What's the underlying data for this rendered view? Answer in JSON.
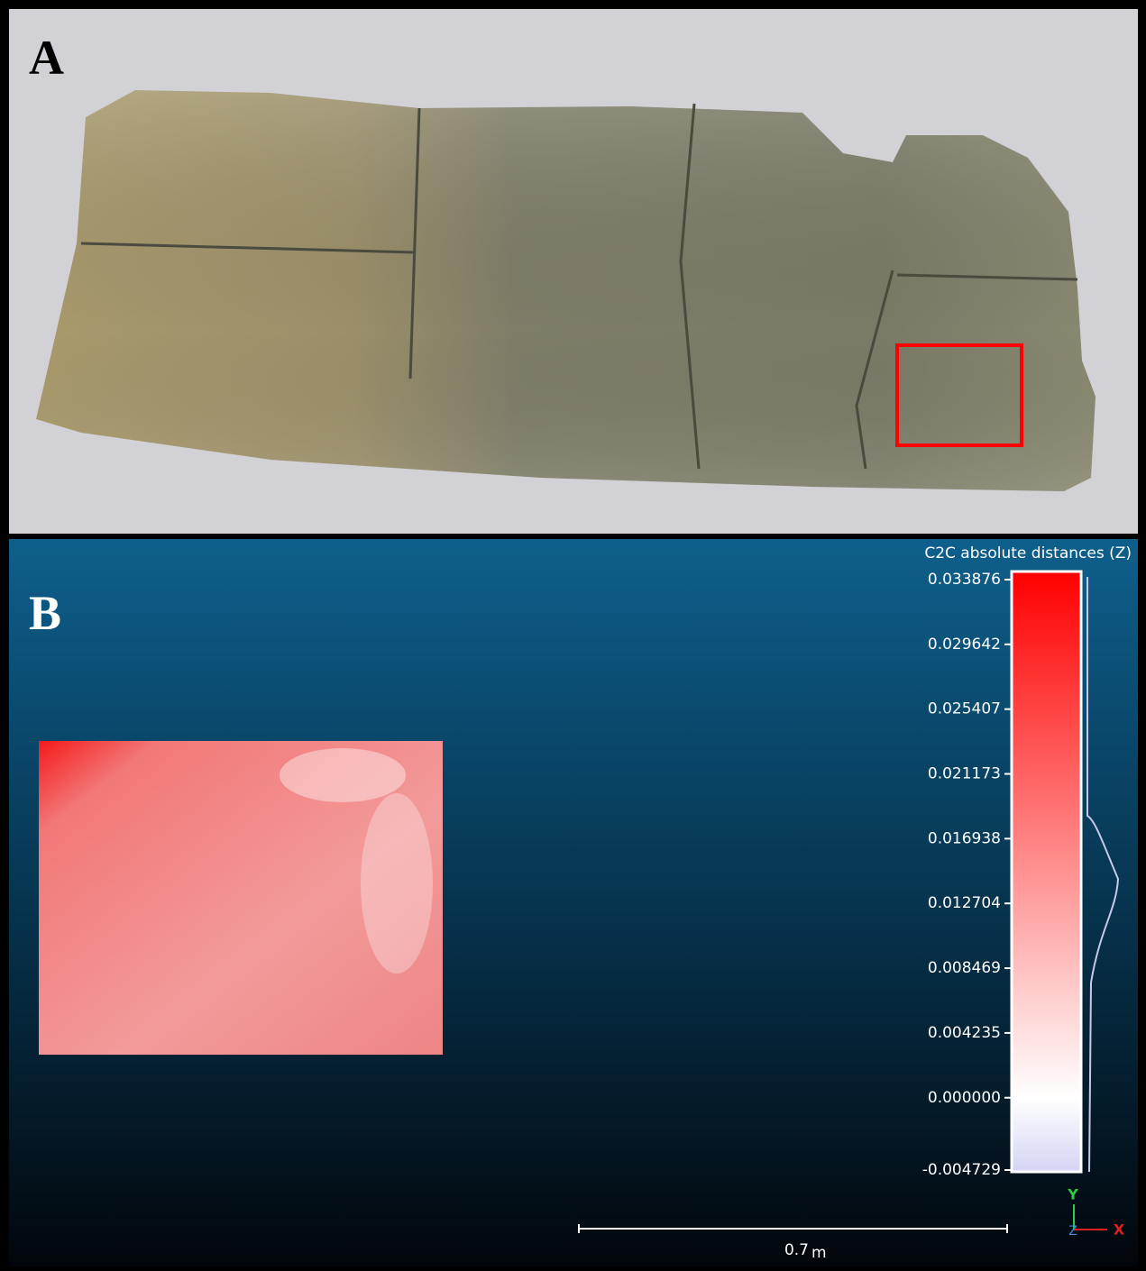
{
  "panel_a": {
    "label": "A"
  },
  "panel_b": {
    "label": "B",
    "colorbar": {
      "title": "C2C absolute distances (Z)",
      "lim": [
        -0.004729,
        0.033876
      ],
      "ticks": [
        0.033876,
        0.029642,
        0.025407,
        0.021173,
        0.016938,
        0.012704,
        0.008469,
        0.004235,
        {
          "value": 0,
          "label": "0.000000"
        },
        -0.004729
      ]
    },
    "scale_bar": {
      "value": 0.7,
      "unit": "m"
    },
    "axes": {
      "y": "Y",
      "z": "Z",
      "x": "X"
    }
  }
}
